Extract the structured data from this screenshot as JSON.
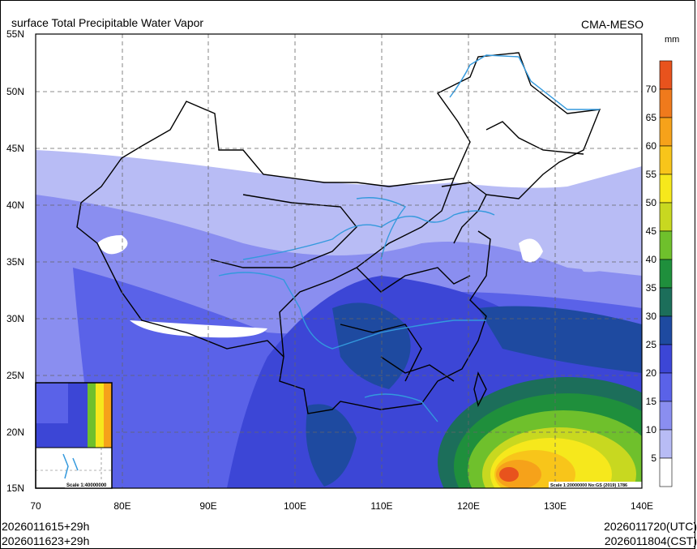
{
  "title": "surface Total Precipitable Water Vapor",
  "brand": "CMA-MESO",
  "unit": "mm",
  "axes": {
    "lat_labels": [
      "55N",
      "50N",
      "45N",
      "40N",
      "35N",
      "30N",
      "25N",
      "20N",
      "15N"
    ],
    "lon_labels": [
      "70",
      "80E",
      "90E",
      "100E",
      "110E",
      "120E",
      "130E",
      "140E"
    ]
  },
  "colorbar": {
    "labels": [
      "70",
      "65",
      "60",
      "55",
      "50",
      "45",
      "40",
      "35",
      "30",
      "25",
      "20",
      "15",
      "10",
      "5"
    ],
    "colors": [
      "#e8531d",
      "#f07a1c",
      "#f6a21a",
      "#f8c51a",
      "#f6e81c",
      "#c8d820",
      "#6fc02c",
      "#1f8f3c",
      "#1c6e5a",
      "#1e4aa0",
      "#3c46d6",
      "#5a62e8",
      "#8a8ef0",
      "#b8bcf5",
      "#ffffff"
    ]
  },
  "scale_main": "Scale 1:20000000 No:GS (2019) 1786",
  "scale_inset": "Scale 1:40000000",
  "footer": {
    "init_utc": "2026011615+29h",
    "init_cst": "2026011623+29h",
    "valid_utc": "2026011720(UTC)",
    "valid_cst": "2026011804(CST)"
  }
}
